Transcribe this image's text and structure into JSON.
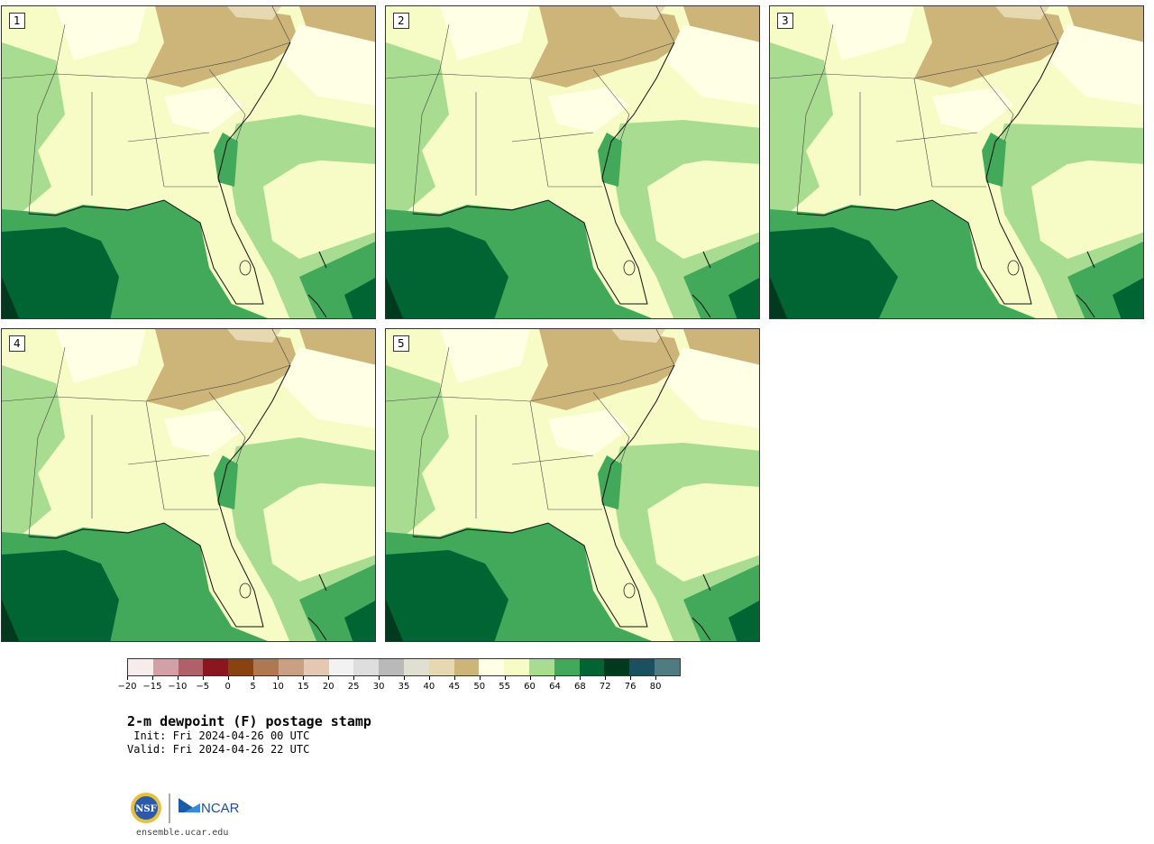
{
  "panels": [
    {
      "label": "1"
    },
    {
      "label": "2"
    },
    {
      "label": "3"
    },
    {
      "label": "4"
    },
    {
      "label": "5"
    }
  ],
  "colorbar": {
    "colors": [
      "#f6ecec",
      "#d2a0a6",
      "#b06068",
      "#8b1620",
      "#8a4210",
      "#b07850",
      "#c9a082",
      "#e4c8b4",
      "#f2f2f2",
      "#dedede",
      "#b9b9b9",
      "#e0e0d0",
      "#e6d8b0",
      "#cdb57a",
      "#ffffe6",
      "#f7fbc6",
      "#a8dc90",
      "#42a85a",
      "#006533",
      "#003a1e",
      "#1a5060",
      "#4e7c80"
    ],
    "ticks": [
      "−20",
      "−15",
      "−10",
      "−5",
      "0",
      "5",
      "10",
      "15",
      "20",
      "25",
      "30",
      "35",
      "40",
      "45",
      "50",
      "55",
      "60",
      "64",
      "68",
      "72",
      "76",
      "80"
    ]
  },
  "title": "2-m dewpoint (F) postage stamp",
  "init": " Init: Fri 2024-04-26 00 UTC",
  "valid": "Valid: Fri 2024-04-26 22 UTC",
  "logos": {
    "nsf": "NSF",
    "ncar": "NCAR"
  },
  "site": "ensemble.ucar.edu"
}
